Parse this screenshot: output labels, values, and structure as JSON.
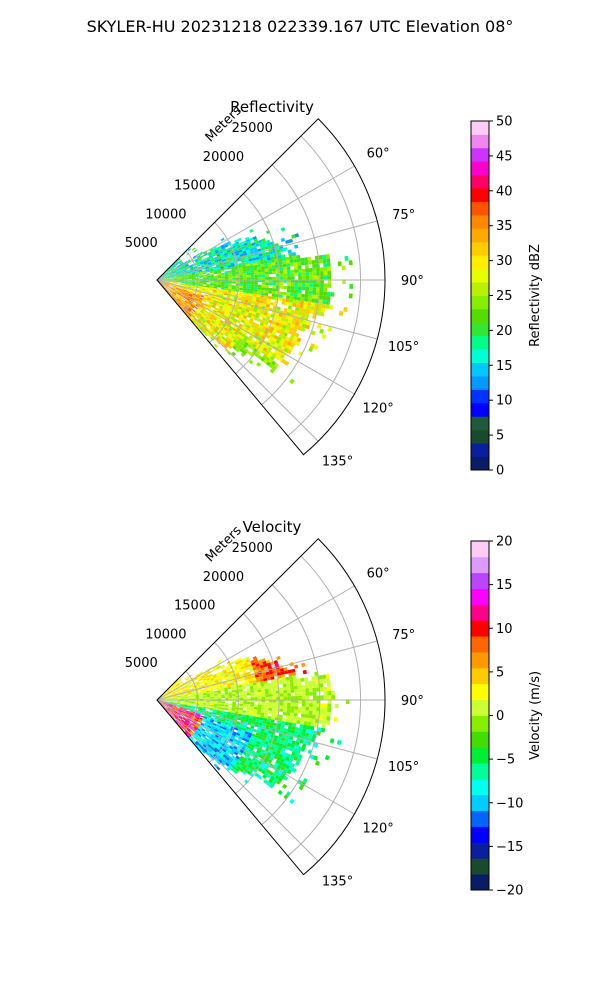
{
  "figure": {
    "suptitle": "SKYLER-HU  20231218  022339.167 UTC Elevation 08°"
  },
  "chart_data": [
    {
      "type": "polar-sector",
      "title": "Reflectivity",
      "range_label": "Meters",
      "range_ticks": [
        5000,
        10000,
        15000,
        20000,
        25000
      ],
      "range_max": 28000,
      "azimuth_ticks": [
        "60°",
        "75°",
        "90°",
        "105°",
        "120°",
        "135°"
      ],
      "azimuth_tick_values": [
        60,
        75,
        90,
        105,
        120,
        135
      ],
      "azimuth_range": [
        45,
        140
      ],
      "colorbar": {
        "label": "Reflectivity dBZ",
        "ticks": [
          0,
          5,
          10,
          15,
          20,
          25,
          30,
          35,
          40,
          45,
          50
        ],
        "tick_labels": [
          "0",
          "5",
          "10",
          "15",
          "20",
          "25",
          "30",
          "35",
          "40",
          "45",
          "50"
        ],
        "vmin": 0,
        "vmax": 50
      },
      "colormap": [
        "#0b1c66",
        "#0a1e9e",
        "#1a4a2e",
        "#1f5a3a",
        "#0000ff",
        "#0033ff",
        "#0099ff",
        "#00c8ff",
        "#00ffd2",
        "#00ff88",
        "#33e633",
        "#55dd00",
        "#88ee00",
        "#bbf000",
        "#e6ff00",
        "#ffee00",
        "#ffcc00",
        "#ffaa00",
        "#ff8800",
        "#ff5500",
        "#ff0000",
        "#ff0066",
        "#ff00cc",
        "#cc33ff",
        "#ee88ee",
        "#ffccf5"
      ]
    },
    {
      "type": "polar-sector",
      "title": "Velocity",
      "range_label": "Meters",
      "range_ticks": [
        5000,
        10000,
        15000,
        20000,
        25000
      ],
      "range_max": 28000,
      "azimuth_ticks": [
        "60°",
        "75°",
        "90°",
        "105°",
        "120°",
        "135°"
      ],
      "azimuth_tick_values": [
        60,
        75,
        90,
        105,
        120,
        135
      ],
      "azimuth_range": [
        45,
        140
      ],
      "colorbar": {
        "label": "Velocity (m/s)",
        "ticks": [
          -20,
          -15,
          -10,
          -5,
          0,
          5,
          10,
          15,
          20
        ],
        "tick_labels": [
          "−20",
          "−15",
          "−10",
          "−5",
          "0",
          "5",
          "10",
          "15",
          "20"
        ],
        "vmin": -20,
        "vmax": 20
      },
      "colormap": [
        "#0b1c66",
        "#1a4a2e",
        "#0a1e9e",
        "#0000ff",
        "#0066ff",
        "#00ccff",
        "#00ffee",
        "#00ff99",
        "#00ee33",
        "#44dd00",
        "#88ee00",
        "#ccff33",
        "#ffff00",
        "#ffcc00",
        "#ff9900",
        "#ff6600",
        "#ff0000",
        "#ff0088",
        "#ff00ff",
        "#bb44ff",
        "#dd99ff",
        "#ffccf5"
      ]
    }
  ]
}
